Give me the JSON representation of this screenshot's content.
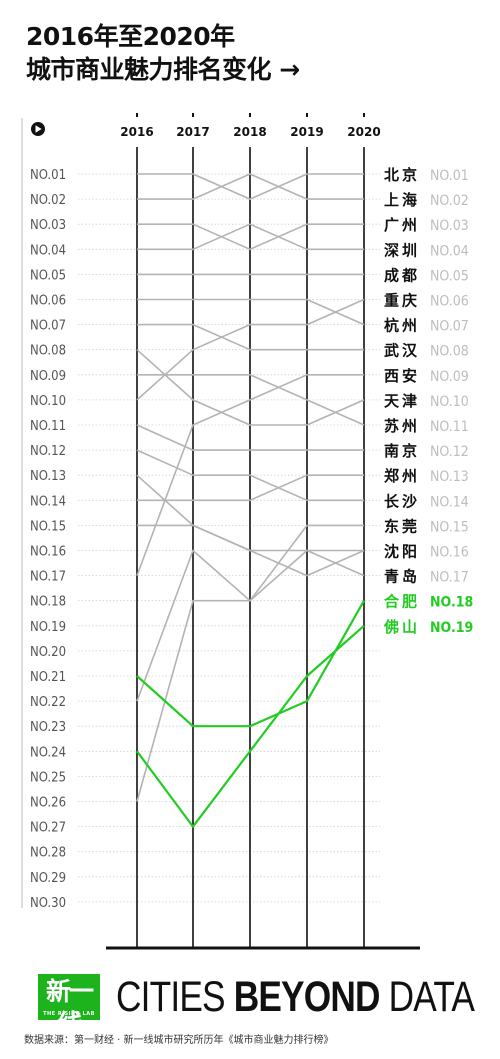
{
  "title": {
    "line1": "2016年至2020年",
    "line2": "城市商业魅力排名变化 →"
  },
  "footer": {
    "logo_text": "新一线",
    "logo_sub": "THE RISING LAB",
    "tagline_light1": "CITIES ",
    "tagline_bold": "BEYOND",
    "tagline_light2": " DATA",
    "source": "数据来源：第一财经 · 新一线城市研究所历年《城市商业魅力排行榜》"
  },
  "colors": {
    "gray_line": "#b3b3b3",
    "green": "#22cc22",
    "text_dark": "#111111",
    "text_rank": "#555555",
    "right_rank_gray": "#bdbdbd"
  },
  "play_icon": "play-icon",
  "chart_data": {
    "type": "line",
    "x": [
      "2016",
      "2017",
      "2018",
      "2019",
      "2020"
    ],
    "rank_labels": [
      "NO.01",
      "NO.02",
      "NO.03",
      "NO.04",
      "NO.05",
      "NO.06",
      "NO.07",
      "NO.08",
      "NO.09",
      "NO.10",
      "NO.11",
      "NO.12",
      "NO.13",
      "NO.14",
      "NO.15",
      "NO.16",
      "NO.17",
      "NO.18",
      "NO.19",
      "NO.20",
      "NO.21",
      "NO.22",
      "NO.23",
      "NO.24",
      "NO.25",
      "NO.26",
      "NO.27",
      "NO.28",
      "NO.29",
      "NO.30"
    ],
    "ylim": [
      1,
      30
    ],
    "series": [
      {
        "name": "北京",
        "rank_label": "NO.01",
        "values": [
          1,
          1,
          2,
          1,
          1
        ],
        "highlight": false
      },
      {
        "name": "上海",
        "rank_label": "NO.02",
        "values": [
          2,
          2,
          1,
          2,
          2
        ],
        "highlight": false
      },
      {
        "name": "广州",
        "rank_label": "NO.03",
        "values": [
          3,
          3,
          4,
          3,
          3
        ],
        "highlight": false
      },
      {
        "name": "深圳",
        "rank_label": "NO.04",
        "values": [
          4,
          4,
          3,
          4,
          4
        ],
        "highlight": false
      },
      {
        "name": "成都",
        "rank_label": "NO.05",
        "values": [
          5,
          5,
          5,
          5,
          5
        ],
        "highlight": false
      },
      {
        "name": "重庆",
        "rank_label": "NO.06",
        "values": [
          10,
          8,
          7,
          7,
          6
        ],
        "highlight": false
      },
      {
        "name": "杭州",
        "rank_label": "NO.07",
        "values": [
          6,
          6,
          6,
          6,
          7
        ],
        "highlight": false
      },
      {
        "name": "武汉",
        "rank_label": "NO.08",
        "values": [
          7,
          7,
          8,
          8,
          8
        ],
        "highlight": false
      },
      {
        "name": "西安",
        "rank_label": "NO.09",
        "values": [
          17,
          11,
          10,
          9,
          9
        ],
        "highlight": false
      },
      {
        "name": "天津",
        "rank_label": "NO.10",
        "values": [
          8,
          10,
          11,
          11,
          10
        ],
        "highlight": false
      },
      {
        "name": "苏州",
        "rank_label": "NO.11",
        "values": [
          9,
          9,
          9,
          10,
          11
        ],
        "highlight": false
      },
      {
        "name": "南京",
        "rank_label": "NO.12",
        "values": [
          11,
          12,
          12,
          12,
          12
        ],
        "highlight": false
      },
      {
        "name": "郑州",
        "rank_label": "NO.13",
        "values": [
          14,
          14,
          14,
          13,
          13
        ],
        "highlight": false
      },
      {
        "name": "长沙",
        "rank_label": "NO.14",
        "values": [
          12,
          13,
          13,
          14,
          14
        ],
        "highlight": false
      },
      {
        "name": "东莞",
        "rank_label": "NO.15",
        "values": [
          22,
          16,
          18,
          15,
          15
        ],
        "highlight": false
      },
      {
        "name": "沈阳",
        "rank_label": "NO.16",
        "values": [
          13,
          15,
          16,
          17,
          16
        ],
        "highlight": false
      },
      {
        "name": "青岛",
        "rank_label": "NO.17",
        "values": [
          15,
          15,
          16,
          16,
          17
        ],
        "highlight": false
      },
      {
        "name": "合肥",
        "rank_label": "NO.18",
        "values": [
          21,
          23,
          23,
          22,
          18
        ],
        "highlight": true
      },
      {
        "name": "佛山",
        "rank_label": "NO.19",
        "values": [
          24,
          27,
          24,
          21,
          19
        ],
        "highlight": true
      },
      {
        "name": "",
        "rank_label": "",
        "values": [
          26,
          18,
          18,
          16,
          16
        ],
        "highlight": false
      }
    ],
    "grid": true
  }
}
